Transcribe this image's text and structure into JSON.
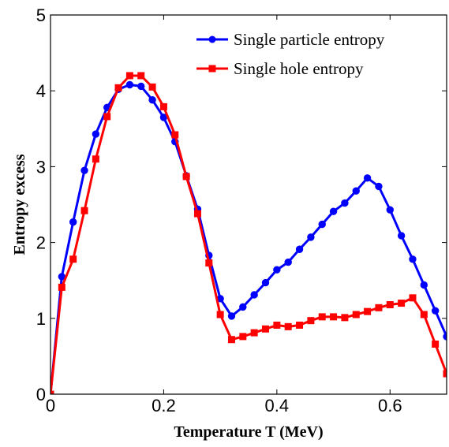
{
  "chart_data": {
    "type": "line",
    "title": "",
    "xlabel": "Temperature T (MeV)",
    "ylabel": "Entropy excess",
    "xlim": [
      0,
      0.7
    ],
    "ylim": [
      0,
      5
    ],
    "xticks": [
      0,
      0.2,
      0.4,
      0.6
    ],
    "xtick_labels": [
      "0",
      "0.2",
      "0.4",
      "0.6"
    ],
    "yticks": [
      0,
      1,
      2,
      3,
      4,
      5
    ],
    "ytick_labels": [
      "0",
      "1",
      "2",
      "3",
      "4",
      "5"
    ],
    "grid": false,
    "legend_position": "top-right",
    "series": [
      {
        "name": "Single particle entropy",
        "color": "#0000ff",
        "marker": "circle",
        "x": [
          0,
          0.02,
          0.04,
          0.06,
          0.08,
          0.1,
          0.12,
          0.14,
          0.16,
          0.18,
          0.2,
          0.22,
          0.24,
          0.26,
          0.28,
          0.3,
          0.32,
          0.34,
          0.36,
          0.38,
          0.4,
          0.42,
          0.44,
          0.46,
          0.48,
          0.5,
          0.52,
          0.54,
          0.56,
          0.58,
          0.6,
          0.62,
          0.64,
          0.66,
          0.68,
          0.7
        ],
        "y": [
          0.0,
          1.55,
          2.27,
          2.95,
          3.43,
          3.78,
          4.02,
          4.08,
          4.06,
          3.88,
          3.65,
          3.33,
          2.88,
          2.44,
          1.83,
          1.26,
          1.03,
          1.15,
          1.31,
          1.47,
          1.64,
          1.74,
          1.91,
          2.07,
          2.24,
          2.41,
          2.52,
          2.68,
          2.85,
          2.74,
          2.43,
          2.09,
          1.78,
          1.44,
          1.1,
          0.76
        ]
      },
      {
        "name": "Single hole entropy",
        "color": "#ff0000",
        "marker": "square",
        "x": [
          0,
          0.02,
          0.04,
          0.06,
          0.08,
          0.1,
          0.12,
          0.14,
          0.16,
          0.18,
          0.2,
          0.22,
          0.24,
          0.26,
          0.28,
          0.3,
          0.32,
          0.34,
          0.36,
          0.38,
          0.4,
          0.42,
          0.44,
          0.46,
          0.48,
          0.5,
          0.52,
          0.54,
          0.56,
          0.58,
          0.6,
          0.62,
          0.64,
          0.66,
          0.68,
          0.7
        ],
        "y": [
          0.0,
          1.41,
          1.78,
          2.42,
          3.1,
          3.66,
          4.04,
          4.2,
          4.2,
          4.05,
          3.79,
          3.42,
          2.87,
          2.38,
          1.73,
          1.05,
          0.72,
          0.76,
          0.81,
          0.86,
          0.91,
          0.89,
          0.91,
          0.97,
          1.02,
          1.02,
          1.01,
          1.05,
          1.09,
          1.14,
          1.18,
          1.2,
          1.27,
          1.05,
          0.66,
          0.27
        ]
      }
    ]
  }
}
